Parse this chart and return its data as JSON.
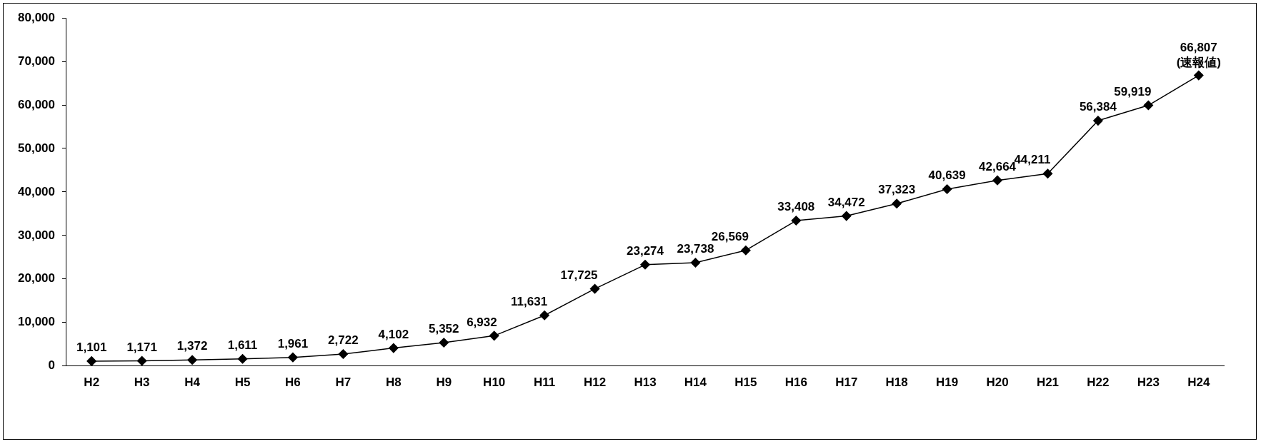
{
  "chart_data": {
    "type": "line",
    "categories": [
      "H2",
      "H3",
      "H4",
      "H5",
      "H6",
      "H7",
      "H8",
      "H9",
      "H10",
      "H11",
      "H12",
      "H13",
      "H14",
      "H15",
      "H16",
      "H17",
      "H18",
      "H19",
      "H20",
      "H21",
      "H22",
      "H23",
      "H24"
    ],
    "series": [
      {
        "color": "#000000",
        "values": [
          1101,
          1171,
          1372,
          1611,
          1961,
          2722,
          4102,
          5352,
          6932,
          11631,
          17725,
          23274,
          23738,
          26569,
          33408,
          34472,
          37323,
          40639,
          42664,
          44211,
          56384,
          59919,
          66807
        ],
        "value_labels": [
          "1,101",
          "1,171",
          "1,372",
          "1,611",
          "1,961",
          "2,722",
          "4,102",
          "5,352",
          "6,932",
          "11,631",
          "17,725",
          "23,274",
          "23,738",
          "26,569",
          "33,408",
          "34,472",
          "37,323",
          "40,639",
          "42,664",
          "44,211",
          "56,384",
          "59,919",
          "66,807"
        ]
      }
    ],
    "ylim": [
      0,
      80000
    ],
    "yticks": [
      {
        "value": 0,
        "label": "0"
      },
      {
        "value": 10000,
        "label": "10,000"
      },
      {
        "value": 20000,
        "label": "20,000"
      },
      {
        "value": 30000,
        "label": "30,000"
      },
      {
        "value": 40000,
        "label": "40,000"
      },
      {
        "value": 50000,
        "label": "50,000"
      },
      {
        "value": 60000,
        "label": "60,000"
      },
      {
        "value": 70000,
        "label": "70,000"
      },
      {
        "value": 80000,
        "label": "80,000"
      }
    ],
    "annotations": [
      {
        "text": "(速報値)",
        "x": "H24",
        "y": 66807
      }
    ],
    "grid": false,
    "legend": false,
    "marker": "diamond",
    "line_style": "solid"
  }
}
